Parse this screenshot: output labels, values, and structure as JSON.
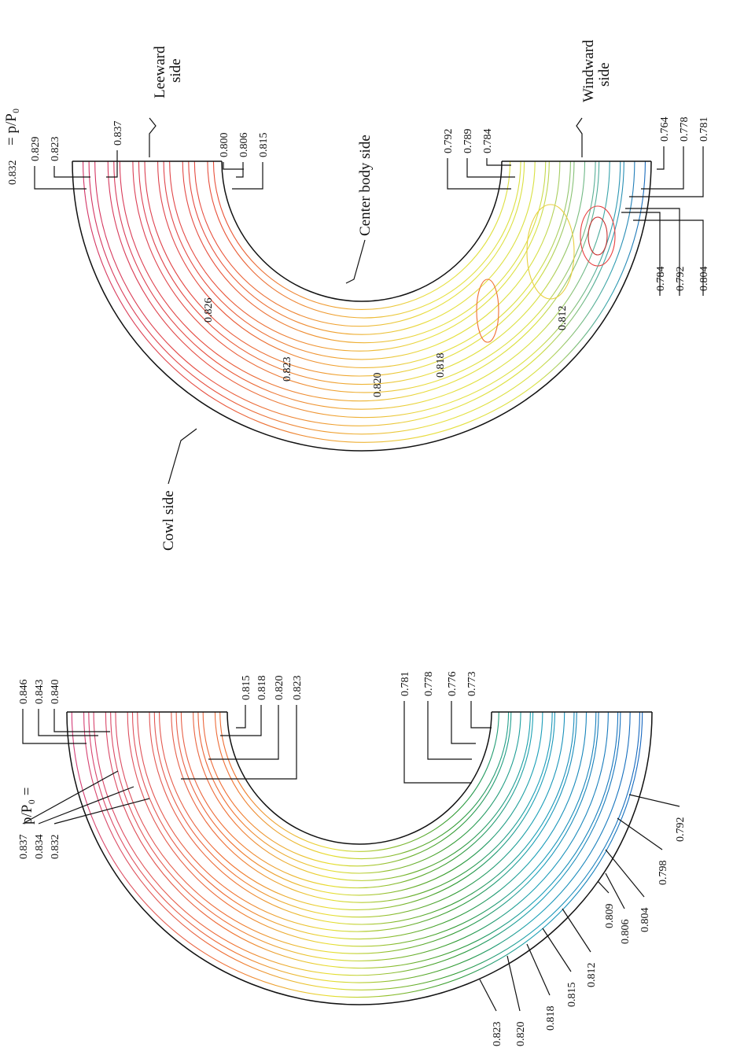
{
  "top_figure": {
    "legend_value": "0.832",
    "legend": "= p/P₀",
    "contour_labels": [
      "0.829",
      "0.823",
      "0.837",
      "0.800",
      "0.806",
      "0.815",
      "0.792",
      "0.789",
      "0.784",
      "0.764",
      "0.778",
      "0.781",
      "0.784",
      "0.792",
      "0.804"
    ],
    "inline_labels": [
      "0.826",
      "0.823",
      "0.820",
      "0.818",
      "0.812"
    ],
    "annotations": {
      "leeward_side": [
        "Leeward",
        "side"
      ],
      "center_body_side": "Center body side",
      "windward_side": [
        "Windward",
        "side"
      ],
      "cowl_side": "Cowl side"
    }
  },
  "bottom_figure": {
    "legend": "p/P₀ =",
    "contour_labels": [
      "0.837",
      "0.834",
      "0.832",
      "0.846",
      "0.843",
      "0.840",
      "0.815",
      "0.818",
      "0.820",
      "0.823",
      "0.781",
      "0.778",
      "0.776",
      "0.773",
      "0.792",
      "0.798",
      "0.804",
      "0.806",
      "0.809",
      "0.812",
      "0.815",
      "0.818",
      "0.820",
      "0.823"
    ]
  }
}
